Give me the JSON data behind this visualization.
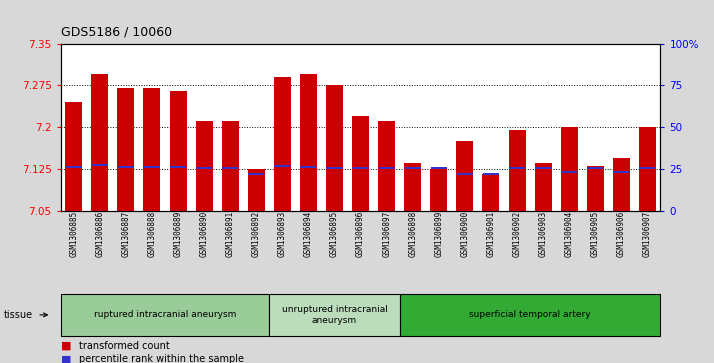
{
  "title": "GDS5186 / 10060",
  "samples": [
    "GSM1306885",
    "GSM1306886",
    "GSM1306887",
    "GSM1306888",
    "GSM1306889",
    "GSM1306890",
    "GSM1306891",
    "GSM1306892",
    "GSM1306893",
    "GSM1306894",
    "GSM1306895",
    "GSM1306896",
    "GSM1306897",
    "GSM1306898",
    "GSM1306899",
    "GSM1306900",
    "GSM1306901",
    "GSM1306902",
    "GSM1306903",
    "GSM1306904",
    "GSM1306905",
    "GSM1306906",
    "GSM1306907"
  ],
  "transformed_count": [
    7.245,
    7.295,
    7.27,
    7.27,
    7.265,
    7.21,
    7.21,
    7.125,
    7.29,
    7.295,
    7.275,
    7.22,
    7.21,
    7.135,
    7.125,
    7.175,
    7.115,
    7.195,
    7.135,
    7.2,
    7.13,
    7.145,
    7.2
  ],
  "percentile_rank": [
    7.128,
    7.132,
    7.128,
    7.128,
    7.128,
    7.127,
    7.127,
    7.115,
    7.13,
    7.128,
    7.127,
    7.127,
    7.127,
    7.127,
    7.127,
    7.115,
    7.115,
    7.127,
    7.127,
    7.119,
    7.127,
    7.119,
    7.127
  ],
  "ylim_left": [
    7.05,
    7.35
  ],
  "ylim_right": [
    0,
    100
  ],
  "yticks_left": [
    7.05,
    7.125,
    7.2,
    7.275,
    7.35
  ],
  "yticks_right": [
    0,
    25,
    50,
    75,
    100
  ],
  "bar_color": "#cc0000",
  "percentile_color": "#3333cc",
  "bg_color": "#d8d8d8",
  "plot_bg": "#ffffff",
  "groups": [
    {
      "label": "ruptured intracranial aneurysm",
      "start": 0,
      "end": 8,
      "color": "#99cc99"
    },
    {
      "label": "unruptured intracranial\naneurysm",
      "start": 8,
      "end": 13,
      "color": "#bbddbb"
    },
    {
      "label": "superficial temporal artery",
      "start": 13,
      "end": 23,
      "color": "#33aa33"
    }
  ],
  "tissue_label": "tissue",
  "legend_items": [
    {
      "label": "transformed count",
      "color": "#cc0000"
    },
    {
      "label": "percentile rank within the sample",
      "color": "#3333cc"
    }
  ],
  "grid_yticks": [
    7.125,
    7.2,
    7.275
  ]
}
